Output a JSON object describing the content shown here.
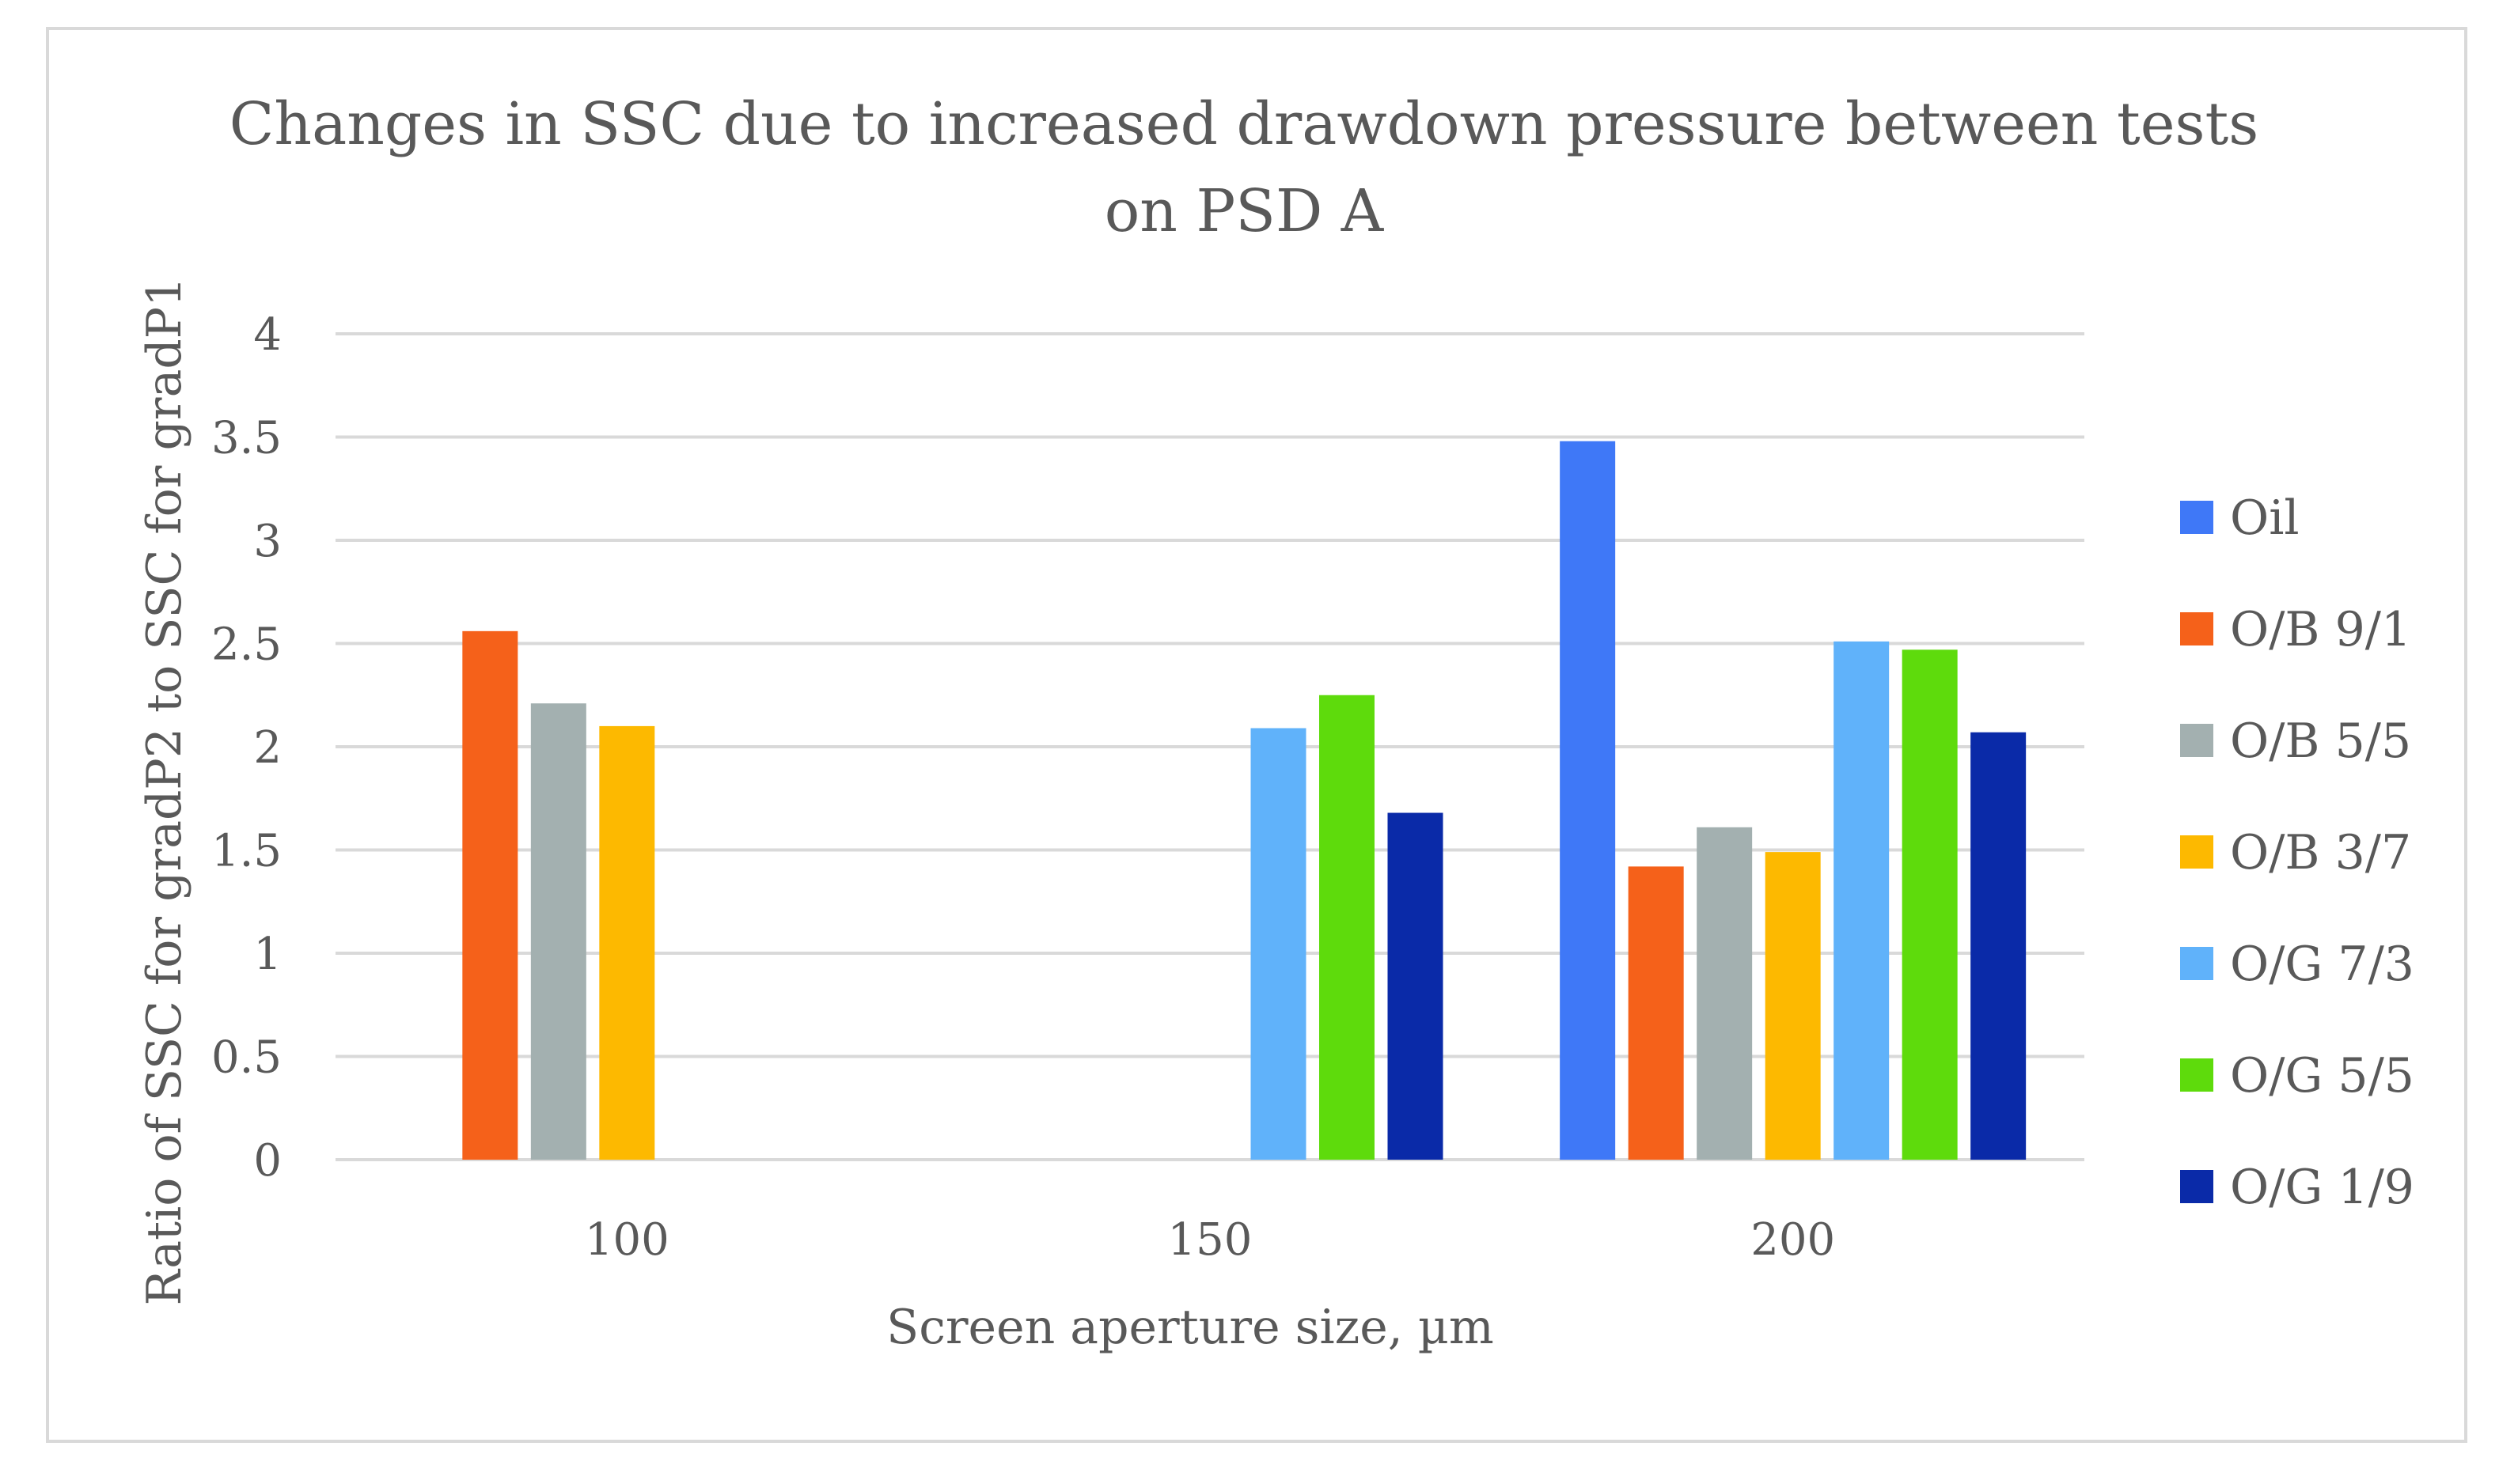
{
  "chart_data": {
    "type": "bar",
    "title_lines": [
      "Changes in SSC due to increased drawdown pressure between tests",
      "on PSD A"
    ],
    "xlabel": "Screen aperture size, µm",
    "ylabel": "Ratio of SSC for gradP2 to SSC for gradP1",
    "categories": [
      "100",
      "150",
      "200"
    ],
    "ylim": [
      0,
      4
    ],
    "yticks": [
      "0",
      "0.5",
      "1",
      "1.5",
      "2",
      "2.5",
      "3",
      "3.5",
      "4"
    ],
    "grid": true,
    "legend_position": "right",
    "series": [
      {
        "name": "Oil",
        "color": "#3f78f7",
        "values": [
          null,
          null,
          3.48
        ]
      },
      {
        "name": "O/B 9/1",
        "color": "#f5611a",
        "values": [
          2.56,
          null,
          1.42
        ]
      },
      {
        "name": "O/B 5/5",
        "color": "#a3b0b0",
        "values": [
          2.21,
          null,
          1.61
        ]
      },
      {
        "name": "O/B 3/7",
        "color": "#fdb900",
        "values": [
          2.1,
          null,
          1.49
        ]
      },
      {
        "name": "O/G 7/3",
        "color": "#60b2fa",
        "values": [
          null,
          2.09,
          2.51
        ]
      },
      {
        "name": "O/G 5/5",
        "color": "#5edb0c",
        "values": [
          null,
          2.25,
          2.47
        ]
      },
      {
        "name": "O/G 1/9",
        "color": "#0a2aa8",
        "values": [
          null,
          1.68,
          2.07
        ]
      }
    ]
  }
}
